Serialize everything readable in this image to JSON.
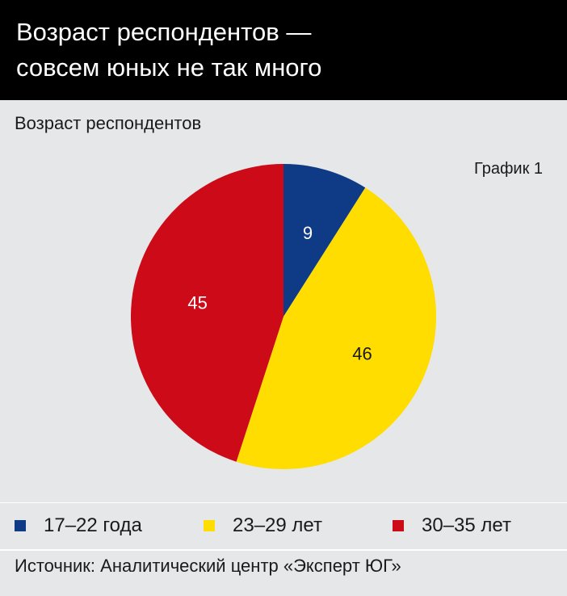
{
  "header": {
    "title": "Возраст респондентов —\nсовсем юных не так много"
  },
  "chart_subtitle": "Возраст респондентов",
  "chart_label": "График 1",
  "chart_data": {
    "type": "pie",
    "title": "Возраст респондентов",
    "categories": [
      "17–22 года",
      "23–29 лет",
      "30–35 лет"
    ],
    "values": [
      9,
      46,
      45
    ],
    "labels": [
      "9",
      "46",
      "45"
    ],
    "colors": [
      "#0f3a86",
      "#ffdd00",
      "#cc0a18"
    ],
    "label_colors": [
      "#ffffff",
      "#1a1a1a",
      "#ffffff"
    ],
    "legend_position": "bottom"
  },
  "legend": {
    "items": [
      {
        "label": "17–22 года",
        "color": "#0f3a86"
      },
      {
        "label": "23–29 лет",
        "color": "#ffdd00"
      },
      {
        "label": "30–35 лет",
        "color": "#cc0a18"
      }
    ]
  },
  "source": "Источник: Аналитический центр «Эксперт ЮГ»"
}
